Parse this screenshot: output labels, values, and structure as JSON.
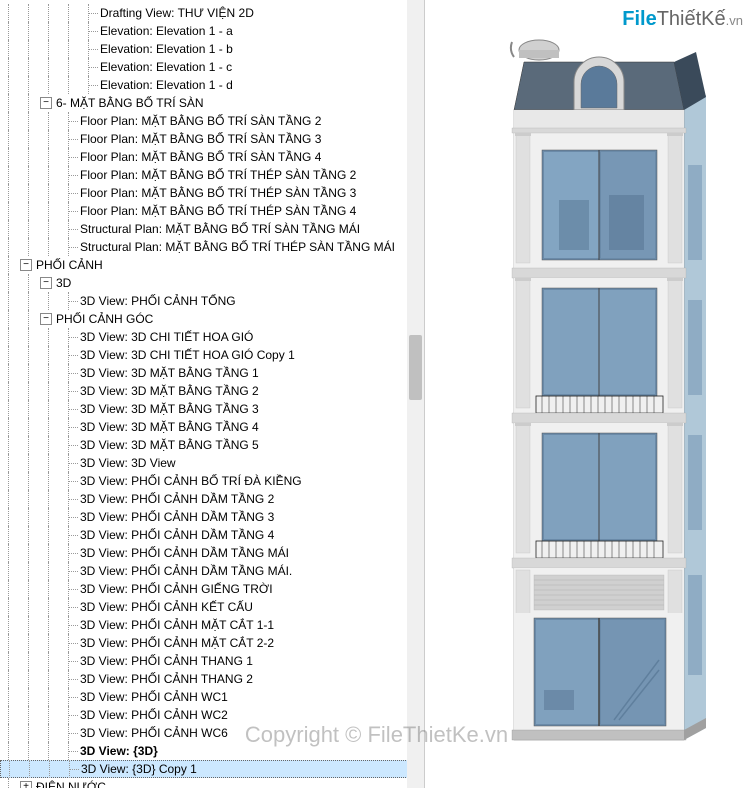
{
  "tree": {
    "topItems": [
      {
        "indent": 4,
        "label": "Drafting View: THƯ VIỆN 2D"
      },
      {
        "indent": 4,
        "label": "Elevation: Elevation 1 - a"
      },
      {
        "indent": 4,
        "label": "Elevation: Elevation 1 - b"
      },
      {
        "indent": 4,
        "label": "Elevation: Elevation 1 - c"
      },
      {
        "indent": 4,
        "label": "Elevation: Elevation 1 - d"
      }
    ],
    "group6": {
      "label": "6- MẶT BẰNG BỐ TRÍ SÀN",
      "indent": 2,
      "items": [
        "Floor Plan: MẶT BẰNG BỐ TRÍ SÀN TẦNG 2",
        "Floor Plan: MẶT BẰNG BỐ TRÍ SÀN TẦNG 3",
        "Floor Plan: MẶT BẰNG BỐ TRÍ SÀN TẦNG 4",
        "Floor Plan: MẶT BẰNG BỐ TRÍ THÉP SÀN TẦNG 2",
        "Floor Plan: MẶT BẰNG BỐ TRÍ THÉP SÀN TẦNG 3",
        "Floor Plan: MẶT BẰNG BỐ TRÍ THÉP SÀN TẦNG 4",
        "Structural Plan: MẶT BẰNG BỐ TRÍ SÀN TẦNG MÁI",
        "Structural Plan: MẶT BẰNG BỐ TRÍ THÉP SÀN TẦNG MÁI"
      ]
    },
    "phoiCanh": {
      "label": "PHỐI CẢNH",
      "indent": 1,
      "group3d": {
        "label": "3D",
        "items": [
          "3D View: PHỐI CẢNH TỔNG"
        ]
      },
      "phoiCanhGoc": {
        "label": "PHỐI CẢNH GÓC",
        "items": [
          "3D View: 3D CHI TIẾT HOA GIÓ",
          "3D View: 3D CHI TIẾT HOA GIÓ Copy 1",
          "3D View: 3D MẶT BẰNG TẦNG 1",
          "3D View: 3D MẶT BẰNG TẦNG 2",
          "3D View: 3D MẶT BẰNG TẦNG 3",
          "3D View: 3D MẶT BẰNG TẦNG 4",
          "3D View: 3D MẶT BẰNG TẦNG 5",
          "3D View: 3D View",
          "3D View: PHỐI CẢNH BỐ TRÍ ĐÀ KIỀNG",
          "3D View: PHỐI CẢNH DẦM TẦNG 2",
          "3D View: PHỐI CẢNH DẦM TẦNG 3",
          "3D View: PHỐI CẢNH DẦM TẦNG 4",
          "3D View: PHỐI CẢNH DẦM TẦNG MÁI",
          "3D View: PHỐI CẢNH DẦM TẦNG MÁI.",
          "3D View: PHỐI CẢNH GIẾNG TRỜI",
          "3D View: PHỐI CẢNH KẾT CẤU",
          "3D View: PHỐI CẢNH MẶT CẮT 1-1",
          "3D View: PHỐI CẢNH MẶT CẮT 2-2",
          "3D View: PHỐI CẢNH THANG 1",
          "3D View: PHỐI CẢNH THANG 2",
          "3D View: PHỐI CẢNH WC1",
          "3D View: PHỐI CẢNH WC2",
          "3D View: PHỐI CẢNH WC6"
        ],
        "boldItems": [
          "3D View: {3D}"
        ],
        "selectedItem": "3D View: {3D} Copy 1"
      }
    },
    "dienNuoc": {
      "label": "ĐIỆN NƯỚC"
    }
  },
  "watermark": {
    "file": "File",
    "thietke": "ThiếtKế",
    "vn": ".vn"
  },
  "copyright": "Copyright © FileThietKe.vn",
  "colors": {
    "background": "#ffffff",
    "text": "#000000",
    "border": "#cccccc",
    "selected": "#cce8ff",
    "hover": "#e5f3ff",
    "logo_blue": "#0099cc",
    "logo_gray": "#666666",
    "window_blue": "#a8c8e0",
    "window_dark": "#5a7a9a",
    "building_light": "#e8e8e8",
    "building_dark": "#c0c0c0",
    "roof": "#4a5a6a"
  }
}
